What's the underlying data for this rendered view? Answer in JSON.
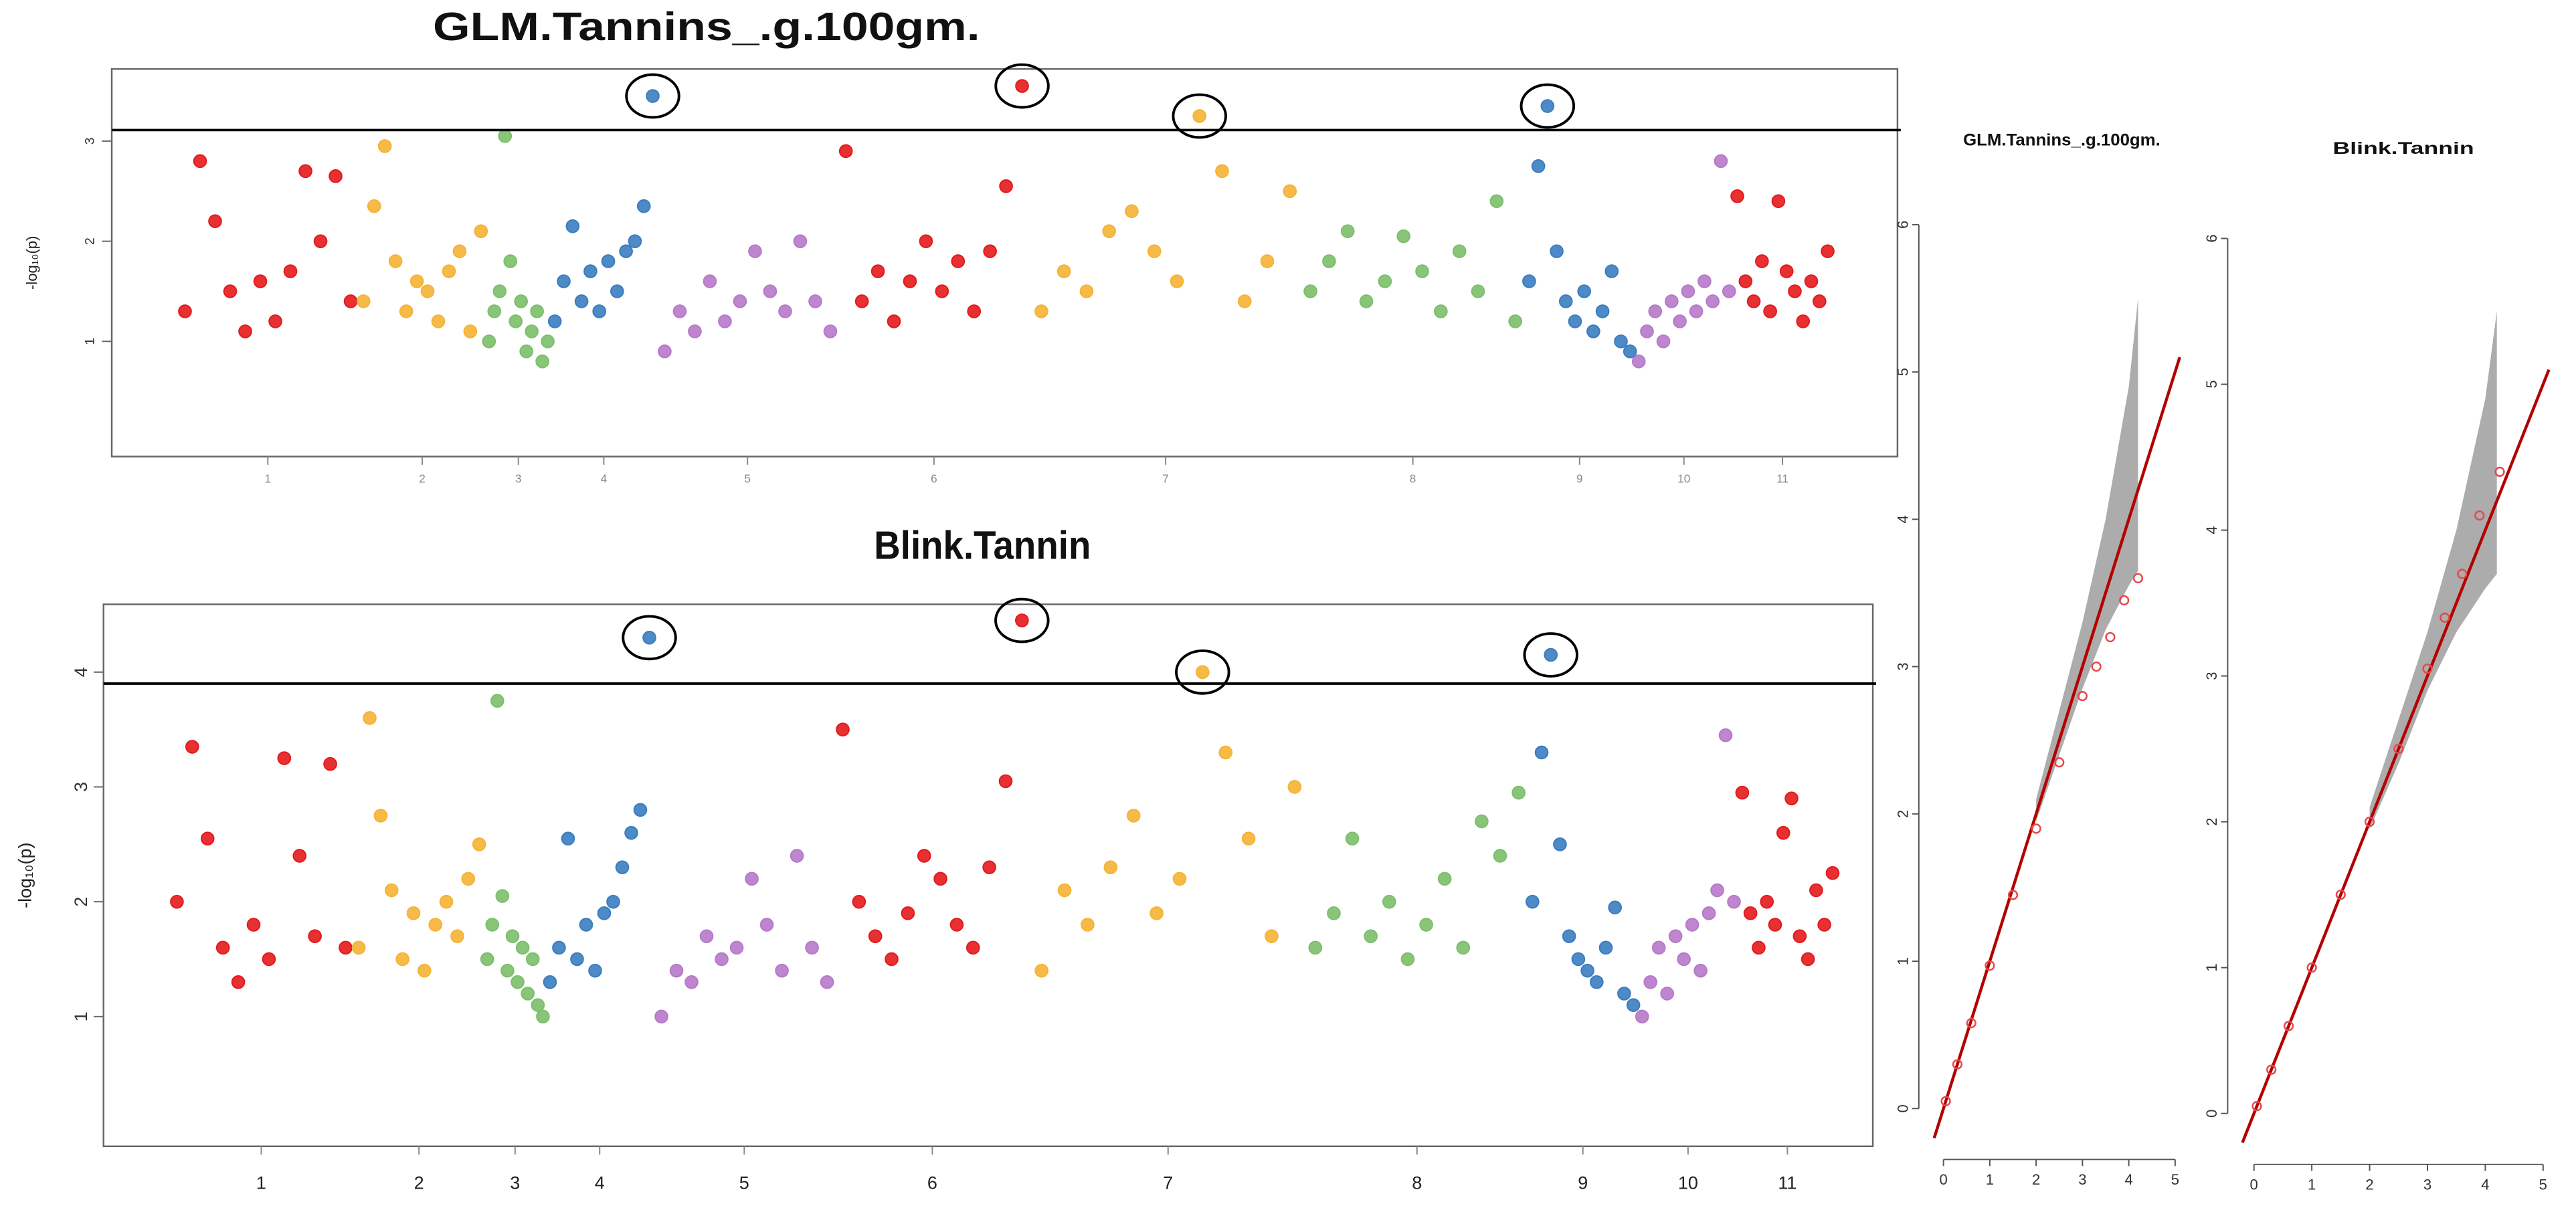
{
  "chart_data": [
    {
      "type": "manhattan",
      "title": "GLM.Tannins_.g.100gm.",
      "ylabel": "-log₁₀(p)",
      "categories": [
        "1",
        "2",
        "3",
        "4",
        "5",
        "6",
        "7",
        "8",
        "9",
        "10",
        "11"
      ],
      "colors": [
        "#e41a1c",
        "#f5b335",
        "#7cbf6a",
        "#3a7dc0",
        "#b679c9",
        "#e41a1c",
        "#f5b335",
        "#7cbf6a",
        "#3a7dc0",
        "#b679c9",
        "#e41a1c"
      ],
      "values": [
        [
          1.3,
          2.8,
          2.2,
          1.5,
          1.1,
          1.6,
          1.2,
          1.7,
          2.7,
          2.0,
          2.65,
          1.4
        ],
        [
          1.4,
          2.35,
          2.95,
          1.8,
          1.3,
          1.6,
          1.5,
          1.2,
          1.7,
          1.9,
          1.1,
          2.1
        ],
        [
          1.0,
          1.3,
          1.5,
          3.05,
          1.8,
          1.2,
          1.4,
          0.9,
          1.1,
          1.3,
          0.8,
          1.0
        ],
        [
          1.2,
          1.6,
          2.15,
          1.4,
          1.7,
          1.3,
          1.8,
          1.5,
          1.9,
          2.0,
          2.35,
          3.45
        ],
        [
          0.9,
          1.3,
          1.1,
          1.6,
          1.2,
          1.4,
          1.9,
          1.5,
          1.3,
          2.0,
          1.4,
          1.1
        ],
        [
          2.9,
          1.4,
          1.7,
          1.2,
          1.6,
          2.0,
          1.5,
          1.8,
          1.3,
          1.9,
          2.55,
          3.55
        ],
        [
          1.3,
          1.7,
          1.5,
          2.1,
          2.3,
          1.9,
          1.6,
          3.25,
          2.7,
          1.4,
          1.8,
          2.5
        ],
        [
          1.5,
          1.8,
          2.1,
          1.4,
          1.6,
          2.05,
          1.7,
          1.3,
          1.9,
          1.5,
          2.4,
          1.2
        ],
        [
          1.6,
          2.75,
          3.35,
          1.9,
          1.4,
          1.2,
          1.5,
          1.1,
          1.3,
          1.7,
          1.0,
          0.9
        ],
        [
          0.8,
          1.1,
          1.3,
          1.0,
          1.4,
          1.2,
          1.5,
          1.3,
          1.6,
          1.4,
          2.8,
          1.5
        ],
        [
          2.45,
          1.6,
          1.4,
          1.8,
          1.3,
          2.4,
          1.7,
          1.5,
          1.2,
          1.6,
          1.4,
          1.9
        ]
      ],
      "threshold": 3.11,
      "ylim": [
        -0.15,
        3.72
      ],
      "yticks": [
        1,
        2,
        3
      ]
    },
    {
      "type": "manhattan",
      "title": "Blink.Tannin",
      "ylabel": "-log₁₀(p)",
      "categories": [
        "1",
        "2",
        "3",
        "4",
        "5",
        "6",
        "7",
        "8",
        "9",
        "10",
        "11"
      ],
      "colors": [
        "#e41a1c",
        "#f5b335",
        "#7cbf6a",
        "#3a7dc0",
        "#b679c9",
        "#e41a1c",
        "#f5b335",
        "#7cbf6a",
        "#3a7dc0",
        "#b679c9",
        "#e41a1c"
      ],
      "values": [
        [
          2.0,
          3.35,
          2.55,
          1.6,
          1.3,
          1.8,
          1.5,
          3.25,
          2.4,
          1.7,
          3.2,
          1.6
        ],
        [
          1.6,
          3.6,
          2.75,
          2.1,
          1.5,
          1.9,
          1.4,
          1.8,
          2.0,
          1.7,
          2.2,
          2.5
        ],
        [
          1.5,
          1.8,
          3.75,
          2.05,
          1.4,
          1.7,
          1.3,
          1.6,
          1.2,
          1.5,
          1.1,
          1.0
        ],
        [
          1.3,
          1.6,
          2.55,
          1.5,
          1.8,
          1.4,
          1.9,
          2.0,
          2.3,
          2.6,
          2.8,
          4.3
        ],
        [
          1.0,
          1.4,
          1.3,
          1.7,
          1.5,
          1.6,
          2.2,
          1.8,
          1.4,
          2.4,
          1.6,
          1.3
        ],
        [
          3.5,
          2.0,
          1.7,
          1.5,
          1.9,
          2.4,
          2.2,
          1.8,
          1.6,
          2.3,
          3.05,
          4.45
        ],
        [
          1.4,
          2.1,
          1.8,
          2.3,
          2.75,
          1.9,
          2.2,
          4.0,
          3.3,
          2.55,
          1.7,
          3.0
        ],
        [
          1.6,
          1.9,
          2.55,
          1.7,
          2.0,
          1.5,
          1.8,
          2.2,
          1.6,
          2.7,
          2.4,
          2.95
        ],
        [
          2.0,
          3.3,
          4.15,
          2.5,
          1.7,
          1.5,
          1.4,
          1.3,
          1.6,
          1.95,
          1.2,
          1.1
        ],
        [
          1.0,
          1.3,
          1.6,
          1.2,
          1.7,
          1.5,
          1.8,
          1.4,
          1.9,
          2.1,
          3.45,
          2.0
        ],
        [
          2.95,
          1.9,
          1.6,
          2.0,
          1.8,
          2.6,
          2.9,
          1.7,
          1.5,
          2.1,
          1.8,
          2.25
        ]
      ],
      "threshold": 3.9,
      "ylim": [
        -0.13,
        4.59
      ],
      "yticks": [
        1,
        2,
        3,
        4
      ]
    },
    {
      "type": "qq",
      "title": "GLM.Tannins_.g.100gm.",
      "color": "#e8474a",
      "line_color": "#b30000",
      "x": [
        0.05,
        0.3,
        0.6,
        1.0,
        1.5,
        2.0,
        2.5,
        3.0,
        3.3,
        3.6,
        3.9,
        4.2
      ],
      "values": [
        0.05,
        0.3,
        0.58,
        0.97,
        1.45,
        1.9,
        2.35,
        2.8,
        3.0,
        3.2,
        3.45,
        3.6
      ],
      "band": {
        "x": [
          2.0,
          2.5,
          3.0,
          3.5,
          4.0,
          4.2
        ],
        "lower": [
          1.95,
          2.4,
          2.85,
          3.25,
          3.55,
          3.65
        ],
        "upper": [
          2.1,
          2.7,
          3.3,
          4.0,
          4.9,
          5.5
        ]
      },
      "xlim": [
        0,
        5
      ],
      "xticks": [
        0,
        1,
        2,
        3,
        4,
        5
      ],
      "ylim": [
        0,
        6
      ],
      "yticks": [
        0,
        1,
        2,
        3,
        4,
        5,
        6
      ]
    },
    {
      "type": "qq",
      "title": "Blink.Tannin",
      "color": "#e8474a",
      "line_color": "#b30000",
      "x": [
        0.05,
        0.3,
        0.6,
        1.0,
        1.5,
        2.0,
        2.5,
        3.0,
        3.3,
        3.6,
        3.9,
        4.25
      ],
      "values": [
        0.05,
        0.3,
        0.6,
        1.0,
        1.5,
        2.0,
        2.5,
        3.05,
        3.4,
        3.7,
        4.1,
        4.4
      ],
      "band": {
        "x": [
          2.0,
          2.5,
          3.0,
          3.5,
          4.0,
          4.2
        ],
        "lower": [
          1.95,
          2.4,
          2.9,
          3.3,
          3.6,
          3.7
        ],
        "upper": [
          2.1,
          2.7,
          3.3,
          4.0,
          4.9,
          5.5
        ]
      },
      "xlim": [
        0,
        5
      ],
      "xticks": [
        0,
        1,
        2,
        3,
        4,
        5
      ],
      "ylim": [
        0,
        6
      ],
      "yticks": [
        0,
        1,
        2,
        3,
        4,
        5,
        6
      ]
    }
  ]
}
